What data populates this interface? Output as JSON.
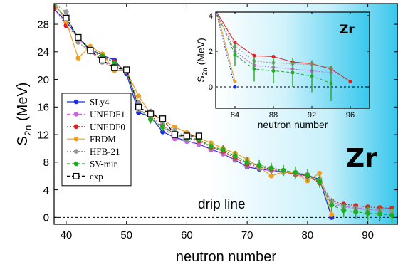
{
  "chart_data": [
    {
      "type": "line",
      "xlabel": "neutron number",
      "ylabel_main": "S",
      "ylabel_sub": "2n",
      "ylabel_unit": " (MeV)",
      "xlim": [
        38,
        95
      ],
      "ylim": [
        -1,
        31
      ],
      "xticks": [
        40,
        50,
        60,
        70,
        80,
        90
      ],
      "yticks": [
        0,
        4,
        8,
        12,
        16,
        20,
        24,
        28
      ],
      "annotation_element": "Zr",
      "annotation_dripline": "drip line",
      "legend_placement": "left-middle",
      "series": [
        {
          "name": "SLy4",
          "color": "#1a2ee0",
          "dash": "",
          "marker": "circle",
          "x": [
            38,
            40,
            42,
            44,
            46,
            48,
            50,
            52,
            54,
            56,
            58,
            60,
            62,
            64,
            66,
            68,
            70,
            72,
            74,
            76,
            78,
            80,
            82,
            84
          ],
          "y": [
            30.2,
            28.4,
            26.1,
            24.4,
            23.5,
            22.8,
            20.8,
            15.2,
            14.6,
            12.4,
            11.6,
            11.1,
            10.6,
            9.9,
            9.2,
            8.3,
            7.3,
            7.0,
            6.8,
            6.6,
            6.3,
            6.1,
            5.5,
            0.0
          ]
        },
        {
          "name": "UNEDF1",
          "color": "#cc66dd",
          "dash": "5,3",
          "marker": "circle",
          "x": [
            38,
            40,
            42,
            44,
            46,
            48,
            50,
            52,
            54,
            56,
            58,
            60,
            62,
            64,
            66,
            68,
            70,
            72,
            74,
            76,
            78,
            80,
            82,
            84,
            86,
            88,
            90,
            92,
            94
          ],
          "y": [
            30.8,
            29.0,
            26.0,
            24.0,
            22.7,
            22.0,
            21.1,
            15.6,
            14.4,
            13.2,
            11.4,
            11.0,
            10.6,
            9.8,
            9.2,
            8.4,
            7.4,
            7.1,
            6.8,
            6.5,
            6.2,
            5.9,
            5.2,
            1.8,
            1.6,
            1.4,
            1.2,
            1.0,
            0.9
          ]
        },
        {
          "name": "UNEDF0",
          "color": "#e02020",
          "dash": "2,2",
          "marker": "circle",
          "x": [
            38,
            40,
            42,
            44,
            46,
            48,
            50,
            52,
            54,
            56,
            58,
            60,
            62,
            64,
            66,
            68,
            70,
            72,
            74,
            76,
            78,
            80,
            82,
            84,
            86,
            88,
            90,
            92,
            94
          ],
          "y": [
            30.3,
            27.8,
            26.1,
            24.3,
            23.2,
            22.6,
            21.1,
            16.2,
            14.7,
            13.4,
            12.0,
            11.5,
            11.1,
            10.2,
            9.6,
            8.6,
            7.7,
            7.3,
            7.0,
            6.7,
            6.3,
            6.0,
            5.0,
            2.4,
            1.9,
            1.7,
            1.5,
            1.4,
            1.3
          ]
        },
        {
          "name": "FRDM",
          "color": "#f0a020",
          "dash": "",
          "marker": "circle",
          "x": [
            38,
            40,
            42,
            44,
            46,
            48,
            50,
            52,
            54,
            56,
            58,
            60,
            62,
            64,
            66,
            68,
            70,
            72,
            74,
            76,
            78,
            80,
            82,
            84
          ],
          "y": [
            31.2,
            28.4,
            23.1,
            24.8,
            23.7,
            21.3,
            21.2,
            17.6,
            15.0,
            14.1,
            13.1,
            12.3,
            11.5,
            10.8,
            10.0,
            9.3,
            8.4,
            7.3,
            6.0,
            6.6,
            6.4,
            5.3,
            6.4,
            0.4
          ]
        },
        {
          "name": "HFB-21",
          "color": "#999999",
          "dash": "2,2",
          "marker": "circle",
          "x": [
            38,
            40,
            42,
            44,
            46,
            48,
            50,
            52,
            54,
            56,
            58,
            60,
            62,
            64,
            66,
            68,
            70,
            72,
            74,
            76,
            78,
            80,
            82,
            84,
            86,
            88,
            90,
            92,
            94
          ],
          "y": [
            31.0,
            29.8,
            25.4,
            24.0,
            22.5,
            21.7,
            21.3,
            16.7,
            15.4,
            13.8,
            12.6,
            11.6,
            11.3,
            10.3,
            9.8,
            8.9,
            8.0,
            7.6,
            7.2,
            6.8,
            6.5,
            6.2,
            5.4,
            2.3,
            1.5,
            1.3,
            1.1,
            1.0,
            0.9
          ]
        },
        {
          "name": "SV-min",
          "color": "#22aa22",
          "dash": "4,3",
          "marker": "circle",
          "x": [
            38,
            40,
            42,
            44,
            46,
            48,
            50,
            52,
            54,
            56,
            58,
            60,
            62,
            64,
            66,
            68,
            70,
            72,
            74,
            76,
            78,
            80,
            82,
            84,
            86,
            88,
            90,
            92,
            94
          ],
          "y": [
            31.0,
            28.8,
            26.1,
            24.4,
            23.4,
            22.4,
            21.2,
            15.9,
            14.2,
            13.1,
            12.1,
            11.5,
            11.3,
            10.3,
            9.8,
            8.9,
            7.9,
            7.5,
            7.1,
            6.8,
            6.5,
            6.1,
            5.2,
            1.8,
            1.0,
            0.8,
            0.6,
            0.5,
            0.3
          ],
          "err": [
            0,
            0,
            0,
            0,
            0,
            0,
            0,
            0.6,
            0.6,
            0.6,
            0.6,
            0.6,
            0.6,
            0.7,
            0.7,
            0.7,
            0.8,
            0.8,
            0.8,
            0.8,
            0.9,
            0.9,
            0.9,
            1.0,
            1.0,
            1.0,
            1.0,
            1.1,
            1.1
          ]
        },
        {
          "name": "exp",
          "color": "#000000",
          "dash": "4,3",
          "marker": "square",
          "x": [
            40,
            42,
            44,
            46,
            48,
            50,
            52,
            54,
            56,
            58,
            60,
            62
          ],
          "y": [
            28.9,
            26.1,
            24.2,
            22.8,
            21.7,
            21.4,
            16.0,
            15.0,
            14.3,
            12.0,
            11.8,
            11.8
          ]
        }
      ]
    },
    {
      "type": "line",
      "role": "inset",
      "xlabel": "neutron number",
      "ylabel_main": "S",
      "ylabel_sub": "2n",
      "ylabel_unit": " (MeV)",
      "xlim": [
        82,
        98
      ],
      "ylim": [
        -1.2,
        4.2
      ],
      "xticks": [
        84,
        88,
        92,
        96
      ],
      "yticks": [
        0,
        2,
        4
      ],
      "annotation_element": "Zr",
      "series": [
        {
          "name": "SLy4",
          "color": "#1a2ee0",
          "dash": "2,2",
          "marker": "circle",
          "x": [
            82,
            84
          ],
          "y": [
            4.3,
            0.0
          ]
        },
        {
          "name": "FRDM",
          "color": "#f0a020",
          "dash": "",
          "marker": "circle",
          "x": [
            82,
            84
          ],
          "y": [
            4.5,
            0.3
          ]
        },
        {
          "name": "UNEDF0",
          "color": "#e02020",
          "dash": "",
          "marker": "circle",
          "x": [
            82,
            84,
            86,
            88,
            90,
            92,
            94,
            96
          ],
          "y": [
            4.3,
            2.5,
            1.75,
            1.7,
            1.4,
            1.3,
            1.0,
            0.3
          ]
        },
        {
          "name": "HFB-21",
          "color": "#999999",
          "dash": "2,2",
          "marker": "circle",
          "x": [
            82,
            84,
            86,
            88,
            90,
            92,
            94
          ],
          "y": [
            4.3,
            2.3,
            1.45,
            1.35,
            1.3,
            1.25,
            1.1
          ]
        },
        {
          "name": "UNEDF1",
          "color": "#cc66dd",
          "dash": "2,2",
          "marker": "circle",
          "x": [
            82,
            84,
            86,
            88,
            90,
            92,
            94
          ],
          "y": [
            4.3,
            2.0,
            1.2,
            1.1,
            1.0,
            0.9,
            0.8
          ]
        },
        {
          "name": "SV-min",
          "color": "#22aa22",
          "dash": "4,3",
          "marker": "circle",
          "x": [
            82,
            84,
            86,
            88,
            90,
            92,
            94
          ],
          "y": [
            4.3,
            1.8,
            1.0,
            0.9,
            0.8,
            0.6,
            0.2
          ],
          "err": [
            0,
            0.6,
            0.7,
            0.7,
            0.8,
            0.9,
            1.0
          ]
        }
      ]
    }
  ]
}
